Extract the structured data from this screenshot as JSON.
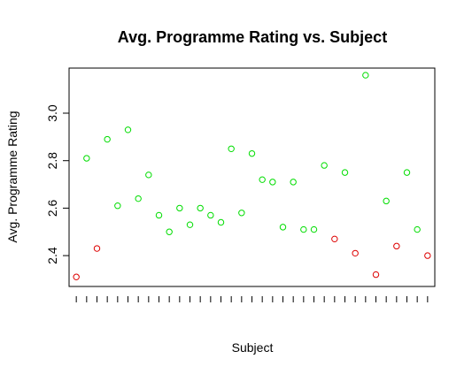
{
  "chart_data": {
    "type": "scatter",
    "title": "Avg. Programme Rating vs. Subject",
    "xlabel": "Subject",
    "ylabel": "Avg. Programme  Rating",
    "ylim": [
      2.27,
      3.19
    ],
    "xlim": [
      0.3,
      35.7
    ],
    "yticks": [
      2.4,
      2.6,
      2.8,
      3.0
    ],
    "ytick_labels": [
      "2.4",
      "2.6",
      "2.8",
      "3.0"
    ],
    "x_tick_count": 35,
    "grid": false,
    "colors": {
      "high": "#00dd00",
      "low": "#dd0000"
    },
    "points": [
      {
        "x": 1,
        "y": 2.31,
        "color": "low"
      },
      {
        "x": 2,
        "y": 2.81,
        "color": "high"
      },
      {
        "x": 3,
        "y": 2.43,
        "color": "low"
      },
      {
        "x": 4,
        "y": 2.89,
        "color": "high"
      },
      {
        "x": 5,
        "y": 2.61,
        "color": "high"
      },
      {
        "x": 6,
        "y": 2.93,
        "color": "high"
      },
      {
        "x": 7,
        "y": 2.64,
        "color": "high"
      },
      {
        "x": 8,
        "y": 2.74,
        "color": "high"
      },
      {
        "x": 9,
        "y": 2.57,
        "color": "high"
      },
      {
        "x": 10,
        "y": 2.5,
        "color": "high"
      },
      {
        "x": 11,
        "y": 2.6,
        "color": "high"
      },
      {
        "x": 12,
        "y": 2.53,
        "color": "high"
      },
      {
        "x": 13,
        "y": 2.6,
        "color": "high"
      },
      {
        "x": 14,
        "y": 2.57,
        "color": "high"
      },
      {
        "x": 15,
        "y": 2.54,
        "color": "high"
      },
      {
        "x": 16,
        "y": 2.85,
        "color": "high"
      },
      {
        "x": 17,
        "y": 2.58,
        "color": "high"
      },
      {
        "x": 18,
        "y": 2.83,
        "color": "high"
      },
      {
        "x": 19,
        "y": 2.72,
        "color": "high"
      },
      {
        "x": 20,
        "y": 2.71,
        "color": "high"
      },
      {
        "x": 21,
        "y": 2.52,
        "color": "high"
      },
      {
        "x": 22,
        "y": 2.71,
        "color": "high"
      },
      {
        "x": 23,
        "y": 2.51,
        "color": "high"
      },
      {
        "x": 24,
        "y": 2.51,
        "color": "high"
      },
      {
        "x": 25,
        "y": 2.78,
        "color": "high"
      },
      {
        "x": 26,
        "y": 2.47,
        "color": "low"
      },
      {
        "x": 27,
        "y": 2.75,
        "color": "high"
      },
      {
        "x": 28,
        "y": 2.41,
        "color": "low"
      },
      {
        "x": 29,
        "y": 3.16,
        "color": "high"
      },
      {
        "x": 30,
        "y": 2.32,
        "color": "low"
      },
      {
        "x": 31,
        "y": 2.63,
        "color": "high"
      },
      {
        "x": 32,
        "y": 2.44,
        "color": "low"
      },
      {
        "x": 33,
        "y": 2.75,
        "color": "high"
      },
      {
        "x": 34,
        "y": 2.51,
        "color": "high"
      },
      {
        "x": 35,
        "y": 2.4,
        "color": "low"
      }
    ]
  }
}
